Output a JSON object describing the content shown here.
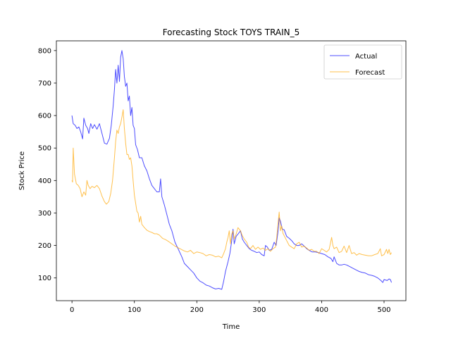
{
  "chart_data": {
    "type": "line",
    "title": "Forecasting Stock TOYS TRAIN_5",
    "xlabel": "Time",
    "ylabel": "Stock Price",
    "xlim": [
      -25,
      535
    ],
    "ylim": [
      30,
      830
    ],
    "xticks": [
      0,
      100,
      200,
      300,
      400,
      500
    ],
    "yticks": [
      100,
      200,
      300,
      400,
      500,
      600,
      700,
      800
    ],
    "grid": false,
    "legend_position": "top-right",
    "series": [
      {
        "name": "Actual",
        "color": "#0000ff",
        "points": [
          [
            0,
            600
          ],
          [
            2,
            575
          ],
          [
            5,
            570
          ],
          [
            8,
            560
          ],
          [
            11,
            565
          ],
          [
            14,
            550
          ],
          [
            17,
            528
          ],
          [
            19,
            592
          ],
          [
            22,
            570
          ],
          [
            25,
            560
          ],
          [
            27,
            545
          ],
          [
            30,
            575
          ],
          [
            33,
            560
          ],
          [
            36,
            572
          ],
          [
            40,
            558
          ],
          [
            44,
            575
          ],
          [
            48,
            545
          ],
          [
            52,
            515
          ],
          [
            56,
            512
          ],
          [
            60,
            530
          ],
          [
            63,
            570
          ],
          [
            66,
            630
          ],
          [
            68,
            680
          ],
          [
            70,
            742
          ],
          [
            72,
            700
          ],
          [
            74,
            755
          ],
          [
            76,
            705
          ],
          [
            78,
            780
          ],
          [
            80,
            800
          ],
          [
            82,
            775
          ],
          [
            84,
            720
          ],
          [
            86,
            690
          ],
          [
            88,
            700
          ],
          [
            90,
            645
          ],
          [
            92,
            660
          ],
          [
            94,
            600
          ],
          [
            96,
            625
          ],
          [
            98,
            570
          ],
          [
            100,
            560
          ],
          [
            102,
            510
          ],
          [
            105,
            495
          ],
          [
            108,
            470
          ],
          [
            112,
            470
          ],
          [
            116,
            445
          ],
          [
            120,
            430
          ],
          [
            124,
            405
          ],
          [
            128,
            385
          ],
          [
            132,
            375
          ],
          [
            136,
            365
          ],
          [
            140,
            365
          ],
          [
            142,
            405
          ],
          [
            144,
            350
          ],
          [
            148,
            325
          ],
          [
            152,
            295
          ],
          [
            156,
            265
          ],
          [
            160,
            245
          ],
          [
            165,
            210
          ],
          [
            170,
            190
          ],
          [
            176,
            165
          ],
          [
            180,
            145
          ],
          [
            185,
            135
          ],
          [
            190,
            125
          ],
          [
            195,
            115
          ],
          [
            200,
            100
          ],
          [
            205,
            90
          ],
          [
            210,
            85
          ],
          [
            215,
            78
          ],
          [
            220,
            75
          ],
          [
            225,
            70
          ],
          [
            230,
            66
          ],
          [
            235,
            68
          ],
          [
            240,
            65
          ],
          [
            243,
            90
          ],
          [
            246,
            120
          ],
          [
            250,
            150
          ],
          [
            253,
            175
          ],
          [
            256,
            215
          ],
          [
            258,
            250
          ],
          [
            260,
            205
          ],
          [
            263,
            228
          ],
          [
            266,
            235
          ],
          [
            270,
            245
          ],
          [
            273,
            220
          ],
          [
            276,
            210
          ],
          [
            280,
            200
          ],
          [
            284,
            190
          ],
          [
            288,
            185
          ],
          [
            292,
            182
          ],
          [
            296,
            178
          ],
          [
            300,
            180
          ],
          [
            304,
            172
          ],
          [
            308,
            168
          ],
          [
            310,
            200
          ],
          [
            313,
            195
          ],
          [
            316,
            185
          ],
          [
            320,
            188
          ],
          [
            324,
            210
          ],
          [
            327,
            200
          ],
          [
            330,
            240
          ],
          [
            332,
            285
          ],
          [
            334,
            275
          ],
          [
            337,
            250
          ],
          [
            340,
            248
          ],
          [
            344,
            228
          ],
          [
            348,
            222
          ],
          [
            352,
            215
          ],
          [
            356,
            205
          ],
          [
            360,
            200
          ],
          [
            364,
            200
          ],
          [
            368,
            205
          ],
          [
            372,
            198
          ],
          [
            376,
            190
          ],
          [
            380,
            185
          ],
          [
            385,
            180
          ],
          [
            390,
            180
          ],
          [
            395,
            178
          ],
          [
            400,
            175
          ],
          [
            405,
            172
          ],
          [
            410,
            165
          ],
          [
            415,
            160
          ],
          [
            418,
            150
          ],
          [
            420,
            165
          ],
          [
            424,
            145
          ],
          [
            428,
            140
          ],
          [
            432,
            140
          ],
          [
            436,
            142
          ],
          [
            440,
            140
          ],
          [
            445,
            135
          ],
          [
            450,
            130
          ],
          [
            455,
            125
          ],
          [
            460,
            120
          ],
          [
            465,
            117
          ],
          [
            470,
            115
          ],
          [
            475,
            110
          ],
          [
            480,
            108
          ],
          [
            485,
            105
          ],
          [
            490,
            100
          ],
          [
            495,
            92
          ],
          [
            498,
            86
          ],
          [
            500,
            95
          ],
          [
            505,
            92
          ],
          [
            508,
            97
          ],
          [
            510,
            95
          ],
          [
            512,
            86
          ]
        ]
      },
      {
        "name": "Forecast",
        "color": "#ffa500",
        "points": [
          [
            0,
            400
          ],
          [
            1,
            395
          ],
          [
            2,
            500
          ],
          [
            4,
            420
          ],
          [
            7,
            390
          ],
          [
            10,
            385
          ],
          [
            13,
            375
          ],
          [
            16,
            350
          ],
          [
            19,
            365
          ],
          [
            22,
            355
          ],
          [
            24,
            400
          ],
          [
            26,
            385
          ],
          [
            29,
            375
          ],
          [
            32,
            382
          ],
          [
            36,
            378
          ],
          [
            40,
            385
          ],
          [
            44,
            375
          ],
          [
            48,
            352
          ],
          [
            52,
            335
          ],
          [
            55,
            327
          ],
          [
            59,
            335
          ],
          [
            62,
            360
          ],
          [
            65,
            400
          ],
          [
            68,
            470
          ],
          [
            70,
            520
          ],
          [
            72,
            555
          ],
          [
            74,
            545
          ],
          [
            76,
            565
          ],
          [
            78,
            575
          ],
          [
            80,
            595
          ],
          [
            82,
            618
          ],
          [
            84,
            560
          ],
          [
            86,
            515
          ],
          [
            88,
            480
          ],
          [
            90,
            480
          ],
          [
            92,
            465
          ],
          [
            94,
            470
          ],
          [
            96,
            445
          ],
          [
            98,
            400
          ],
          [
            100,
            355
          ],
          [
            102,
            330
          ],
          [
            104,
            305
          ],
          [
            106,
            300
          ],
          [
            108,
            272
          ],
          [
            110,
            290
          ],
          [
            112,
            265
          ],
          [
            116,
            255
          ],
          [
            120,
            247
          ],
          [
            124,
            243
          ],
          [
            128,
            240
          ],
          [
            132,
            236
          ],
          [
            136,
            236
          ],
          [
            140,
            232
          ],
          [
            145,
            222
          ],
          [
            150,
            218
          ],
          [
            155,
            212
          ],
          [
            160,
            205
          ],
          [
            165,
            198
          ],
          [
            170,
            193
          ],
          [
            175,
            188
          ],
          [
            180,
            183
          ],
          [
            185,
            180
          ],
          [
            190,
            185
          ],
          [
            195,
            175
          ],
          [
            200,
            180
          ],
          [
            205,
            178
          ],
          [
            210,
            175
          ],
          [
            215,
            168
          ],
          [
            220,
            172
          ],
          [
            225,
            170
          ],
          [
            230,
            165
          ],
          [
            235,
            167
          ],
          [
            240,
            162
          ],
          [
            243,
            175
          ],
          [
            246,
            190
          ],
          [
            248,
            210
          ],
          [
            250,
            225
          ],
          [
            252,
            245
          ],
          [
            254,
            205
          ],
          [
            256,
            235
          ],
          [
            258,
            245
          ],
          [
            260,
            220
          ],
          [
            263,
            235
          ],
          [
            266,
            255
          ],
          [
            270,
            245
          ],
          [
            273,
            230
          ],
          [
            276,
            220
          ],
          [
            280,
            210
          ],
          [
            283,
            195
          ],
          [
            286,
            190
          ],
          [
            290,
            200
          ],
          [
            294,
            188
          ],
          [
            298,
            195
          ],
          [
            302,
            188
          ],
          [
            306,
            192
          ],
          [
            310,
            185
          ],
          [
            314,
            190
          ],
          [
            318,
            182
          ],
          [
            322,
            190
          ],
          [
            326,
            195
          ],
          [
            328,
            225
          ],
          [
            330,
            265
          ],
          [
            332,
            303
          ],
          [
            334,
            245
          ],
          [
            336,
            260
          ],
          [
            338,
            238
          ],
          [
            340,
            230
          ],
          [
            344,
            215
          ],
          [
            348,
            200
          ],
          [
            352,
            195
          ],
          [
            356,
            190
          ],
          [
            360,
            205
          ],
          [
            364,
            210
          ],
          [
            368,
            195
          ],
          [
            372,
            198
          ],
          [
            376,
            192
          ],
          [
            380,
            185
          ],
          [
            384,
            188
          ],
          [
            388,
            182
          ],
          [
            392,
            182
          ],
          [
            396,
            175
          ],
          [
            400,
            190
          ],
          [
            404,
            185
          ],
          [
            408,
            180
          ],
          [
            412,
            188
          ],
          [
            416,
            225
          ],
          [
            418,
            200
          ],
          [
            420,
            190
          ],
          [
            424,
            195
          ],
          [
            428,
            178
          ],
          [
            432,
            182
          ],
          [
            436,
            198
          ],
          [
            440,
            178
          ],
          [
            444,
            200
          ],
          [
            448,
            175
          ],
          [
            452,
            178
          ],
          [
            456,
            170
          ],
          [
            460,
            175
          ],
          [
            465,
            172
          ],
          [
            470,
            170
          ],
          [
            475,
            168
          ],
          [
            480,
            168
          ],
          [
            485,
            172
          ],
          [
            490,
            175
          ],
          [
            494,
            190
          ],
          [
            496,
            168
          ],
          [
            500,
            172
          ],
          [
            504,
            188
          ],
          [
            506,
            175
          ],
          [
            508,
            188
          ],
          [
            510,
            172
          ],
          [
            512,
            178
          ]
        ]
      }
    ]
  }
}
